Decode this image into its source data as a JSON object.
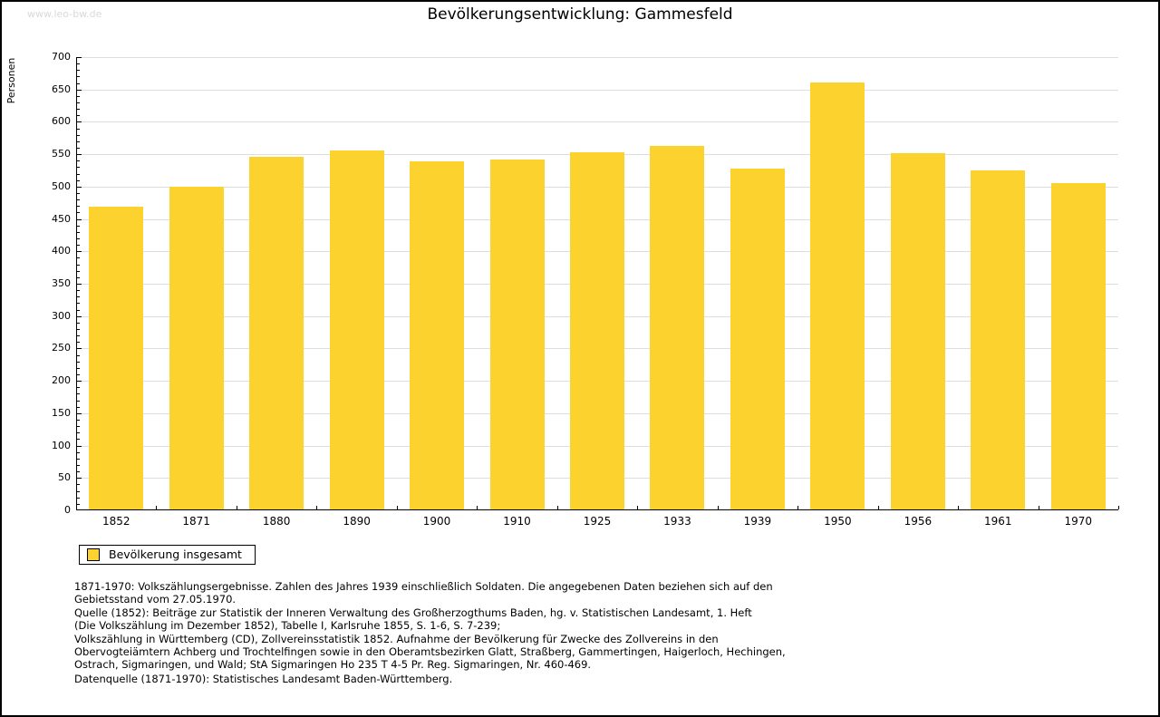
{
  "page": {
    "watermark": "www.leo-bw.de",
    "title": "Bevölkerungsentwicklung: Gammesfeld"
  },
  "chart_data": {
    "type": "bar",
    "title": "Bevölkerungsentwicklung: Gammesfeld",
    "xlabel": "",
    "ylabel": "Personen",
    "categories": [
      "1852",
      "1871",
      "1880",
      "1890",
      "1900",
      "1910",
      "1925",
      "1933",
      "1939",
      "1950",
      "1956",
      "1961",
      "1970"
    ],
    "values": [
      467,
      498,
      545,
      555,
      537,
      540,
      551,
      562,
      526,
      659,
      550,
      523,
      504
    ],
    "ylim": [
      0,
      700
    ],
    "ytick_step": 50,
    "minor_tick_step": 10,
    "grid": "horizontal-major",
    "bar_color": "#fcd32e",
    "gridline_color": "#dedede",
    "legend_position": "bottom-left"
  },
  "legend": {
    "label": "Bevölkerung insgesamt",
    "swatch_color": "#fcd32e"
  },
  "footnotes": {
    "lines": [
      "1871-1970: Volkszählungsergebnisse. Zahlen des Jahres 1939 einschließlich Soldaten. Die angegebenen Daten beziehen sich auf den",
      "Gebietsstand vom 27.05.1970.",
      "Quelle (1852): Beiträge zur Statistik der Inneren Verwaltung des Großherzogthums Baden, hg. v. Statistischen Landesamt, 1. Heft",
      "(Die Volkszählung im Dezember 1852), Tabelle I, Karlsruhe 1855, S. 1-6, S. 7-239;",
      "Volkszählung in Württemberg (CD), Zollvereinsstatistik 1852. Aufnahme der Bevölkerung für Zwecke des Zollvereins in den",
      "Obervogteiämtern Achberg und Trochtelfingen sowie in den Oberamtsbezirken Glatt, Straßberg, Gammertingen, Haigerloch, Hechingen,",
      "Ostrach, Sigmaringen, und Wald; StA Sigmaringen Ho 235 T 4-5 Pr. Reg. Sigmaringen, Nr. 460-469."
    ],
    "datasource": "Datenquelle (1871-1970): Statistisches Landesamt Baden-Württemberg."
  }
}
